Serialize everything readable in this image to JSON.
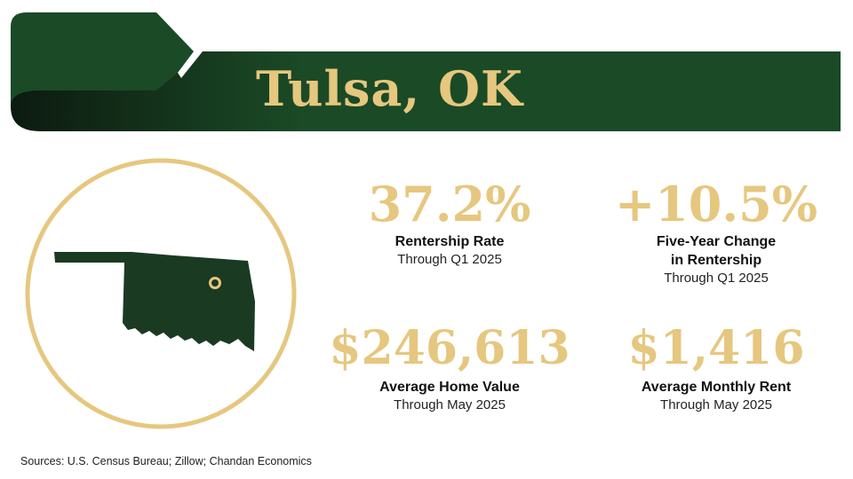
{
  "header": {
    "title": "Tulsa, OK",
    "colors": {
      "banner_dark": "#0f2214",
      "banner": "#1b4a26",
      "accent_gold": "#e6c77f"
    }
  },
  "emblem": {
    "icon": "oklahoma-map-icon",
    "marker": "tulsa-location-marker-icon"
  },
  "stats": [
    {
      "value": "37.2%",
      "label": "Rentership Rate",
      "sub": "Through Q1 2025"
    },
    {
      "value": "+10.5%",
      "label_line1": "Five-Year Change",
      "label_line2": "in Rentership",
      "sub": "Through Q1 2025"
    },
    {
      "value": "$246,613",
      "label": "Average Home Value",
      "sub": "Through May 2025"
    },
    {
      "value": "$1,416",
      "label": "Average Monthly Rent",
      "sub": "Through May 2025"
    }
  ],
  "footer": {
    "sources": "Sources: U.S. Census Bureau; Zillow; Chandan Economics"
  }
}
